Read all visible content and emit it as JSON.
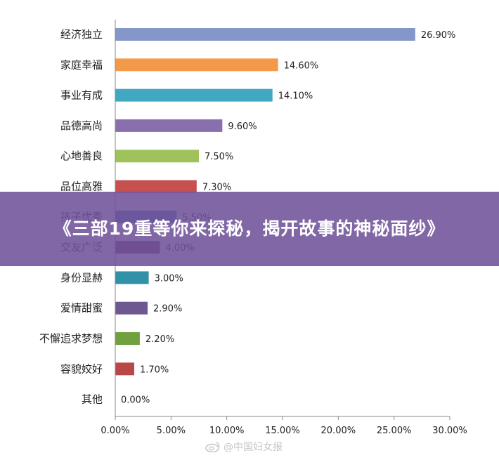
{
  "banner": {
    "title": "《三部19重等你来探秘，揭开故事的神秘面纱》"
  },
  "watermark": {
    "text": "@中国妇女报",
    "icon": "weibo-icon"
  },
  "chart_data": {
    "type": "bar",
    "orientation": "horizontal",
    "categories": [
      "经济独立",
      "家庭幸福",
      "事业有成",
      "品德高尚",
      "心地善良",
      "品位高雅",
      "孩子优秀",
      "交友广泛",
      "身份显赫",
      "爱情甜蜜",
      "不懈追求梦想",
      "容貌姣好",
      "其他"
    ],
    "values": [
      26.9,
      14.6,
      14.1,
      9.6,
      7.5,
      7.3,
      5.5,
      4.0,
      3.0,
      2.9,
      2.2,
      1.7,
      0.0
    ],
    "value_labels": [
      "26.90%",
      "14.60%",
      "14.10%",
      "9.60%",
      "7.50%",
      "7.30%",
      "5.50%",
      "4.00%",
      "3.00%",
      "2.90%",
      "2.20%",
      "1.70%",
      "0.00%"
    ],
    "colors": [
      "#8497c8",
      "#f39a4a",
      "#40a8c0",
      "#8a6fad",
      "#9fc25a",
      "#c65050",
      "#4f7fb8",
      "#6e3a63",
      "#3191a8",
      "#6e5890",
      "#70a040",
      "#b84848",
      "#999999"
    ],
    "xlim": [
      0,
      30
    ],
    "xticks": [
      "0.00%",
      "5.00%",
      "10.00%",
      "15.00%",
      "20.00%",
      "25.00%",
      "30.00%"
    ],
    "grid": false,
    "legend": "none",
    "title": "",
    "xlabel": "",
    "ylabel": ""
  }
}
